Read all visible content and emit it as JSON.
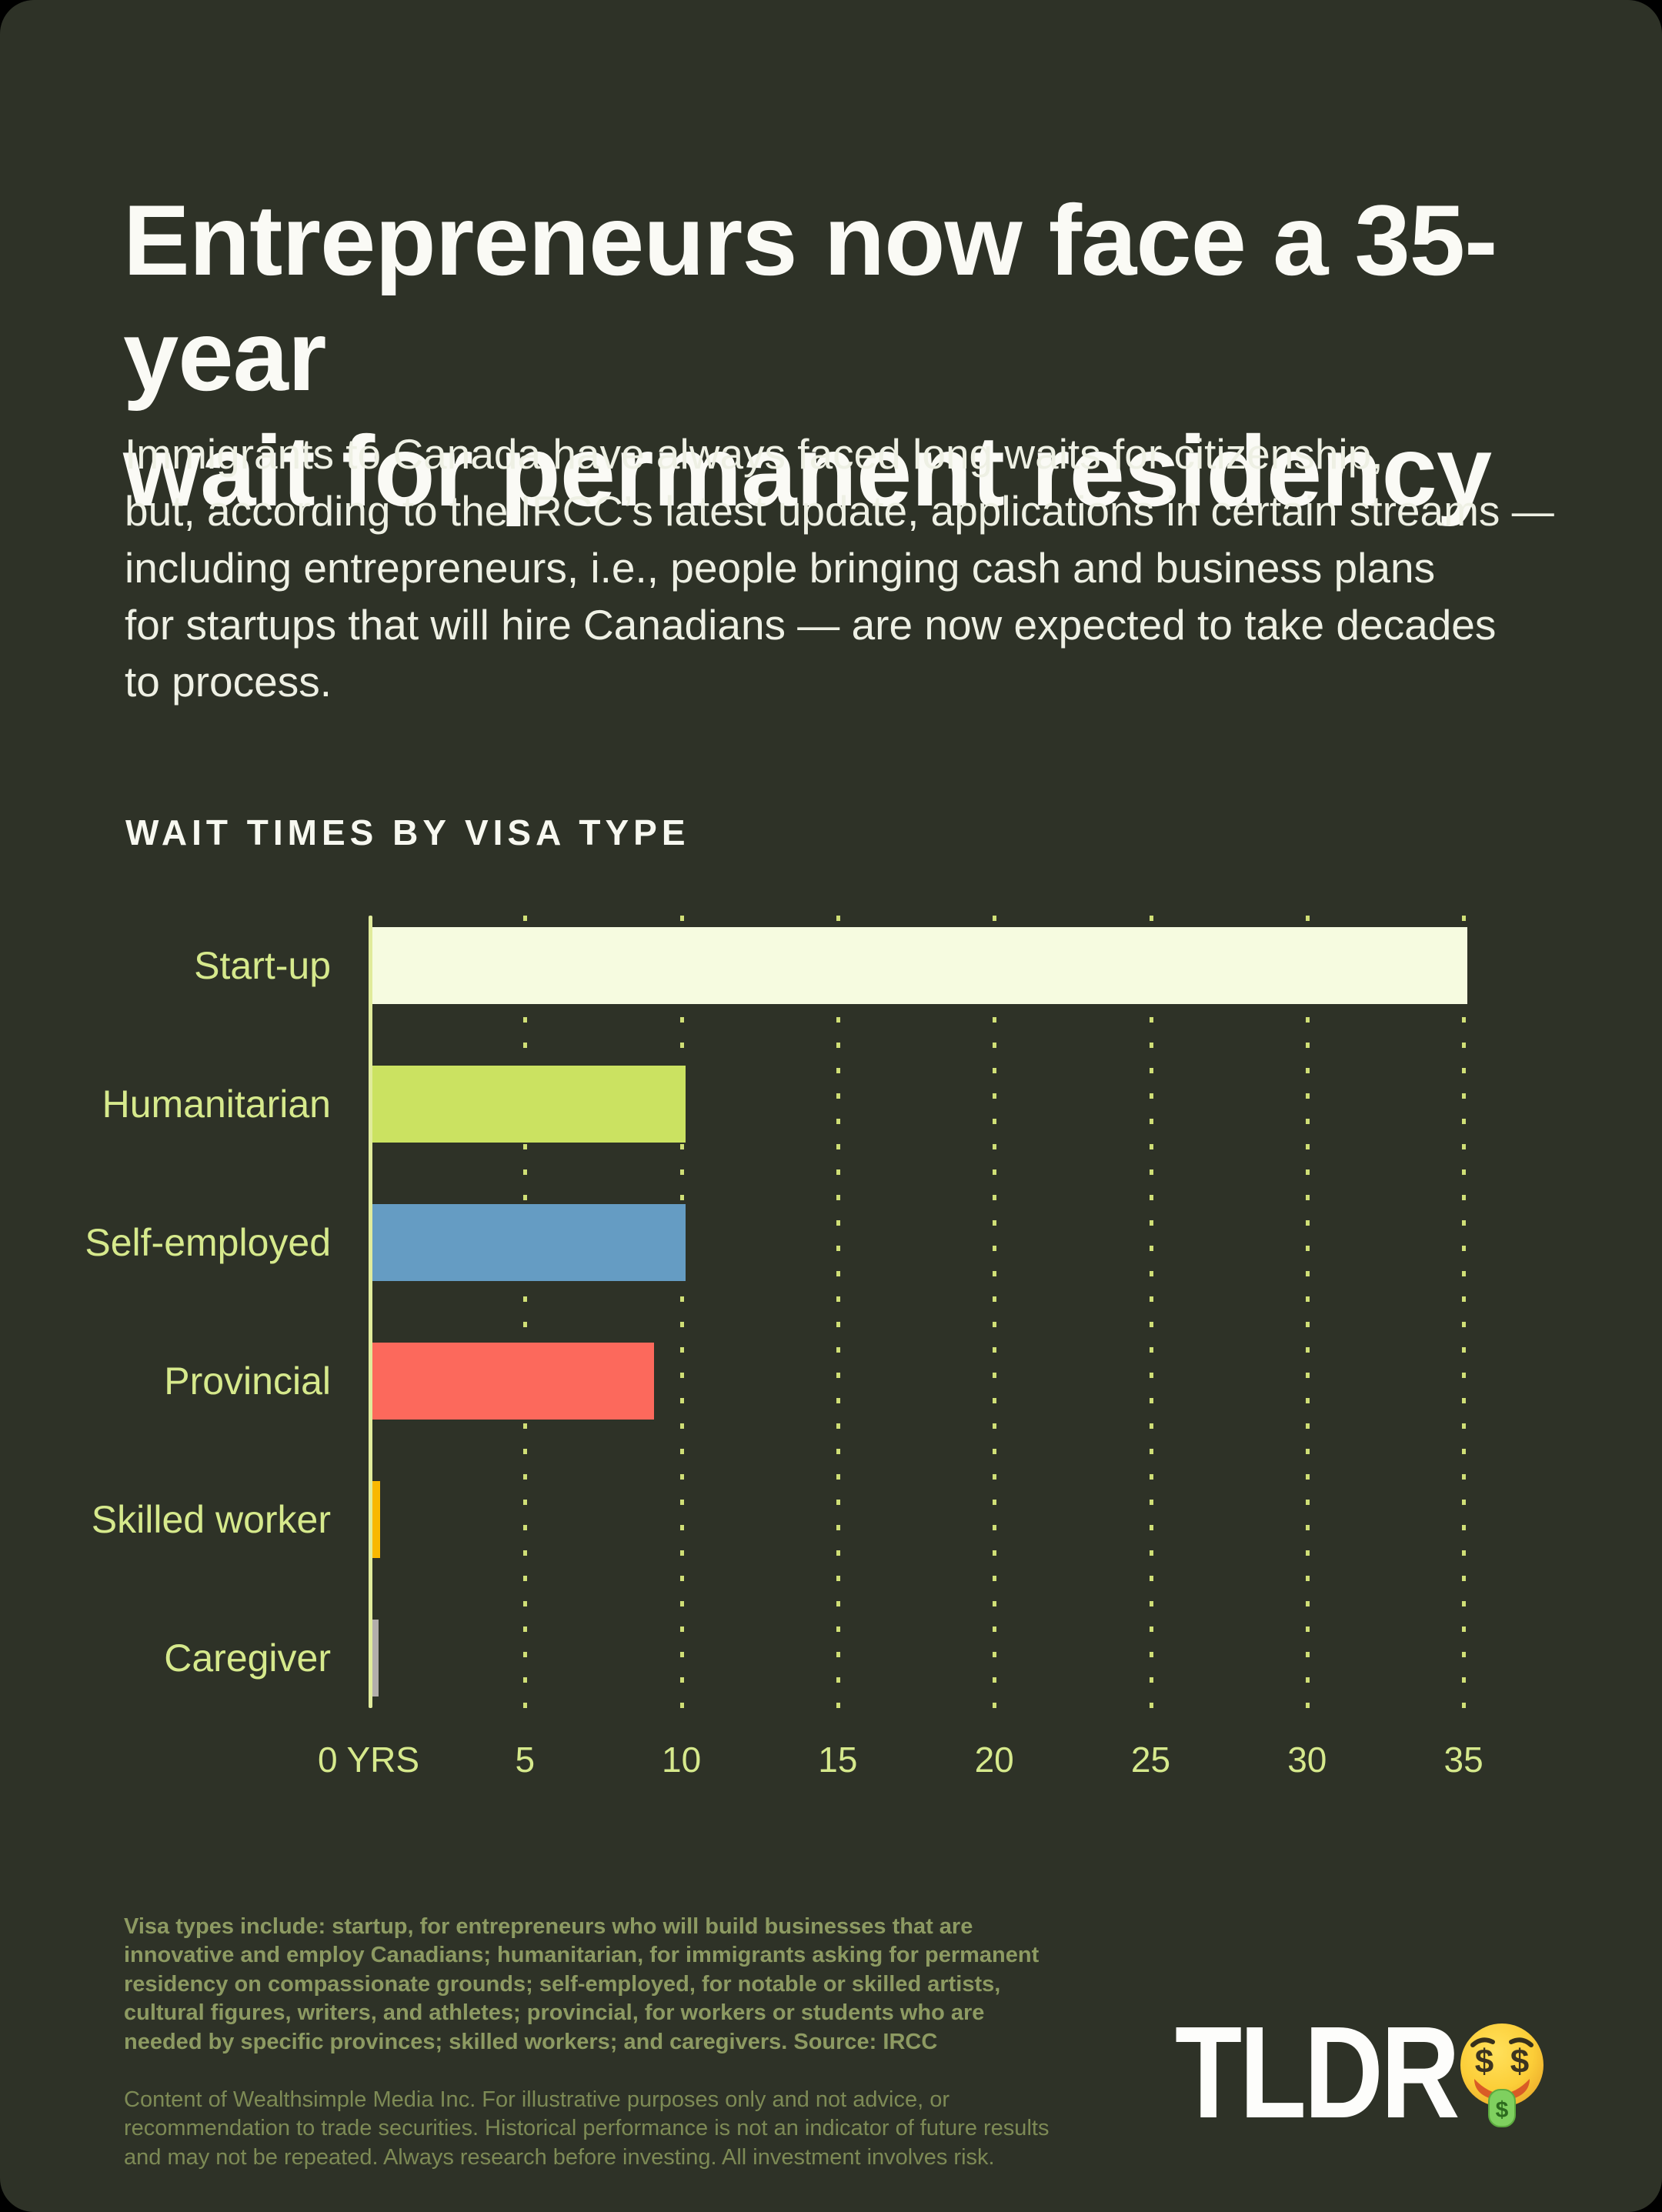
{
  "header": {
    "title": "Entrepreneurs now face a 35-year\nwait for permanent residency",
    "intro": "Immigrants to Canada have always faced long waits for citizenship,\nbut, according to the IRCC’s latest update, applications in certain streams —\nincluding entrepreneurs, i.e., people bringing cash and business plans\nfor startups that will hire Canadians — are now expected to take decades\nto process."
  },
  "chart": {
    "title": "WAIT TIMES BY VISA TYPE"
  },
  "chart_data": {
    "type": "bar",
    "orientation": "horizontal",
    "title": "WAIT TIMES BY VISA TYPE",
    "categories": [
      "Start-up",
      "Humanitarian",
      "Self-employed",
      "Provincial",
      "Skilled worker",
      "Caregiver"
    ],
    "values": [
      35,
      10,
      10,
      9,
      0.25,
      0.2
    ],
    "unit": "years",
    "bar_colors": [
      "#f6fbe0",
      "#cbe261",
      "#659cc3",
      "#fc695c",
      "#f9b800",
      "#b3aeab"
    ],
    "x_ticks": [
      0,
      5,
      10,
      15,
      20,
      25,
      30,
      35
    ],
    "x_tick_labels": [
      "0 YRS",
      "5",
      "10",
      "15",
      "20",
      "25",
      "30",
      "35"
    ],
    "xlim": [
      0,
      35
    ],
    "xlabel": "",
    "ylabel": "",
    "grid": "dotted-vertical",
    "legend": "none"
  },
  "footer": {
    "visa_note": "Visa types include: startup, for entrepreneurs who will build businesses that are\ninnovative and employ Canadians; humanitarian, for immigrants asking for permanent\nresidency on compassionate grounds; self-employed, for notable or skilled artists,\ncultural figures, writers, and athletes; provincial, for workers or students who are\nneeded by specific provinces; skilled workers; and caregivers. Source: IRCC",
    "disclaimer": "Content of Wealthsimple Media Inc. For illustrative purposes only and not advice, or\nrecommendation to trade securities. Historical performance is not an indicator of future results\nand may not be repeated. Always research before investing. All investment involves risk.",
    "logo_text": "TLDR",
    "logo_emoji": "money-mouth-face"
  },
  "colors": {
    "background_outer": "#000000",
    "card_background": "#2e3227",
    "title_text": "#fafaf5",
    "body_text": "#eef0e4",
    "axis_label": "#d6e98c",
    "gridline": "#d9e87a",
    "axis_line": "#e0eb9b",
    "footnote_bold": "#8d9a62",
    "footnote_regular": "#7d8a55"
  }
}
